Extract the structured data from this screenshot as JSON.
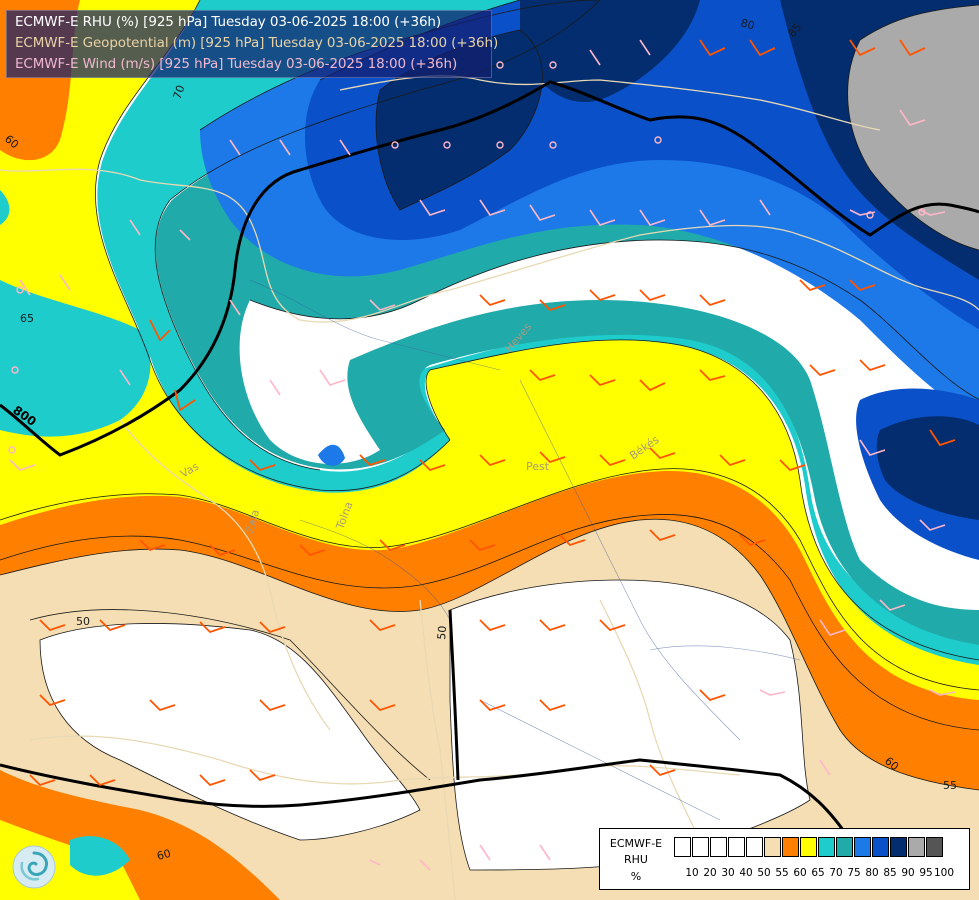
{
  "title": {
    "line1": "ECMWF-E RHU (%) [925 hPa] Tuesday 03-06-2025 18:00 (+36h)",
    "line2": "ECMWF-E Geopotential (m) [925 hPa] Tuesday 03-06-2025 18:00 (+36h)",
    "line3": "ECMWF-E Wind (m/s) [925 hPa] Tuesday 03-06-2025 18:00 (+36h)"
  },
  "legend": {
    "title_line1": "ECMWF-E",
    "title_line2": "RHU",
    "title_line3": "%",
    "ticks": [
      "10",
      "20",
      "30",
      "40",
      "50",
      "55",
      "60",
      "65",
      "70",
      "75",
      "80",
      "85",
      "90",
      "95",
      "100"
    ],
    "colors": [
      "#ffffff",
      "#ffffff",
      "#ffffff",
      "#ffffff",
      "#ffffff",
      "#f5deb3",
      "#ff7f00",
      "#ffff00",
      "#1ecccc",
      "#20aaaa",
      "#1d78e8",
      "#0a50c8",
      "#032d6e",
      "#aaaaaa",
      "#555555"
    ]
  },
  "contour_labels": {
    "rhu": [
      "70",
      "65",
      "60",
      "50",
      "80",
      "85",
      "60",
      "55",
      "60",
      "50"
    ],
    "geopotential": [
      "800"
    ]
  },
  "place_labels": [
    "Pest",
    "Békés",
    "Heves",
    "Vas",
    "Zala",
    "Tolna"
  ],
  "colors": {
    "band_55": "#f5deb3",
    "band_60": "#ff7f00",
    "band_65": "#ffff00",
    "band_70": "#1ecccc",
    "band_75": "#20aaaa",
    "band_80": "#1d78e8",
    "band_85": "#0a50c8",
    "band_90": "#032d6e",
    "band_95": "#aaaaaa",
    "wind_barb_strong": "#ff5500",
    "wind_barb_weak": "#ffb6c8"
  },
  "logo": {
    "icon": "swirl-logo-icon"
  }
}
